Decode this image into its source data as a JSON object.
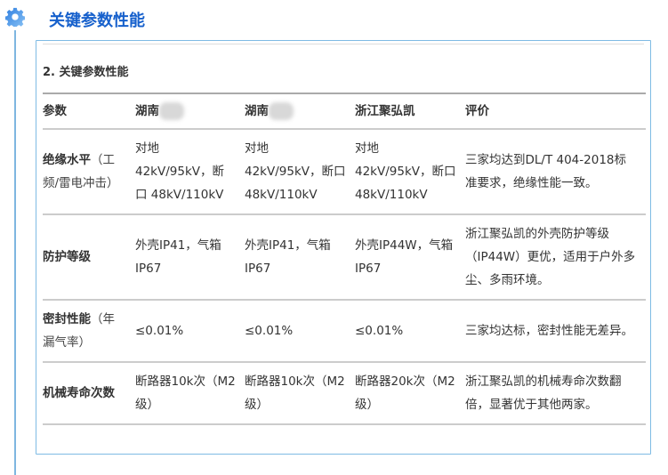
{
  "section_title": "关键参数性能",
  "subtitle": "2. 关键参数性能",
  "headers": [
    "参数",
    "湖南",
    "湖南",
    "浙江聚弘凯",
    "评价"
  ],
  "rows": [
    {
      "param": "绝缘水平",
      "param_note": "（工频/雷电冲击）",
      "c1": "对地 42kV/95kV，断口 48kV/110kV",
      "c2": "对地 42kV/95kV，断口 48kV/110kV",
      "c3": "对地 42kV/95kV，断口 48kV/110kV",
      "eval": "三家均达到DL/T 404-2018标准要求，绝缘性能一致。"
    },
    {
      "param": "防护等级",
      "param_note": "",
      "c1": "外壳IP41，气箱IP67",
      "c2": "外壳IP41，气箱IP67",
      "c3": "外壳IP44W，气箱IP67",
      "eval": "浙江聚弘凯的外壳防护等级（IP44W）更优，适用于户外多尘、多雨环境。"
    },
    {
      "param": "密封性能",
      "param_note": "（年漏气率）",
      "c1": "≤0.01%",
      "c2": "≤0.01%",
      "c3": "≤0.01%",
      "eval": "三家均达标，密封性能无差异。"
    },
    {
      "param": "机械寿命次数",
      "param_note": "",
      "c1": "断路器10k次（M2级）",
      "c2": "断路器10k次（M2级）",
      "c3": "断路器20k次（M2级）",
      "eval": "浙江聚弘凯的机械寿命次数翻倍，显著优于其他两家。"
    }
  ],
  "colors": {
    "accent": "#1660cc",
    "border": "#7fbbe4"
  },
  "icons": {
    "section": "gear-icon"
  }
}
